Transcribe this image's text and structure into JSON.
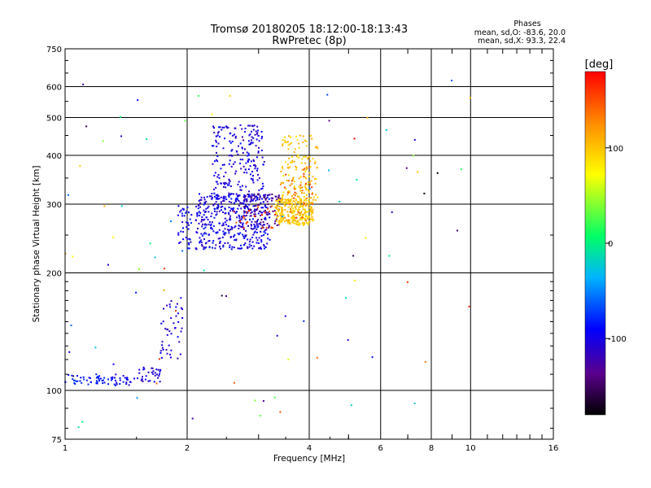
{
  "chart_data": {
    "type": "scatter",
    "title": "Tromsø 20180205 18:12:00-18:13:43",
    "subtitle": "RwPretec (8p)",
    "xlabel": "Frequency [MHz]",
    "ylabel": "Stationary phase Virtual Height [km]",
    "x_scale": "log",
    "y_scale": "log",
    "xlim": [
      1,
      16
    ],
    "ylim": [
      75,
      750
    ],
    "x_ticks": [
      "1",
      "2",
      "4",
      "6",
      "8",
      "10",
      "16"
    ],
    "y_ticks": [
      "75",
      "100",
      "200",
      "300",
      "400",
      "500",
      "600",
      "750"
    ],
    "grid": true,
    "legend": {
      "title": "Phases",
      "lines": [
        "mean, sd,O: -83.6, 20.0",
        "mean, sd,X:  93.3, 22.4"
      ]
    },
    "colorbar": {
      "label": "[deg]",
      "ticks": [
        "100",
        "0",
        "-100"
      ],
      "range": [
        -180,
        180
      ],
      "colors": [
        "#000000",
        "#5a008c",
        "#0000ff",
        "#00b4ff",
        "#00ff66",
        "#ffff00",
        "#ff8c00",
        "#ff0000"
      ]
    },
    "clusters": [
      {
        "x": [
          1.0,
          1.25
        ],
        "y": [
          103,
          110
        ],
        "n": 40,
        "phase": [
          -95,
          -70
        ]
      },
      {
        "x": [
          1.25,
          1.5
        ],
        "y": [
          103,
          110
        ],
        "n": 30,
        "phase": [
          -110,
          -80
        ]
      },
      {
        "x": [
          1.5,
          1.72
        ],
        "y": [
          105,
          115
        ],
        "n": 35,
        "phase": [
          -120,
          -90
        ]
      },
      {
        "x": [
          1.72,
          1.95
        ],
        "y": [
          120,
          175
        ],
        "n": 45,
        "phase": [
          -120,
          -90
        ]
      },
      {
        "x": [
          1.9,
          2.05
        ],
        "y": [
          230,
          300
        ],
        "n": 40,
        "phase": [
          -110,
          -75
        ]
      },
      {
        "x": [
          2.1,
          3.2
        ],
        "y": [
          230,
          320
        ],
        "n": 420,
        "phase": [
          -120,
          -80
        ]
      },
      {
        "x": [
          2.3,
          3.1
        ],
        "y": [
          300,
          480
        ],
        "n": 230,
        "phase": [
          -120,
          -85
        ]
      },
      {
        "x": [
          2.7,
          3.4
        ],
        "y": [
          260,
          320
        ],
        "n": 80,
        "phase": [
          -150,
          -120
        ]
      },
      {
        "x": [
          3.3,
          4.1
        ],
        "y": [
          265,
          310
        ],
        "n": 240,
        "phase": [
          85,
          110
        ]
      },
      {
        "x": [
          3.4,
          4.2
        ],
        "y": [
          300,
          450
        ],
        "n": 150,
        "phase": [
          85,
          115
        ]
      },
      {
        "x": [
          3.4,
          4.1
        ],
        "y": [
          270,
          380
        ],
        "n": 40,
        "phase": [
          120,
          160
        ]
      },
      {
        "x": [
          2.6,
          3.3
        ],
        "y": [
          260,
          300
        ],
        "n": 25,
        "phase": [
          140,
          170
        ]
      },
      {
        "x": [
          1.0,
          10.0
        ],
        "y": [
          80,
          640
        ],
        "n": 90,
        "phase": [
          -180,
          180
        ]
      }
    ]
  }
}
